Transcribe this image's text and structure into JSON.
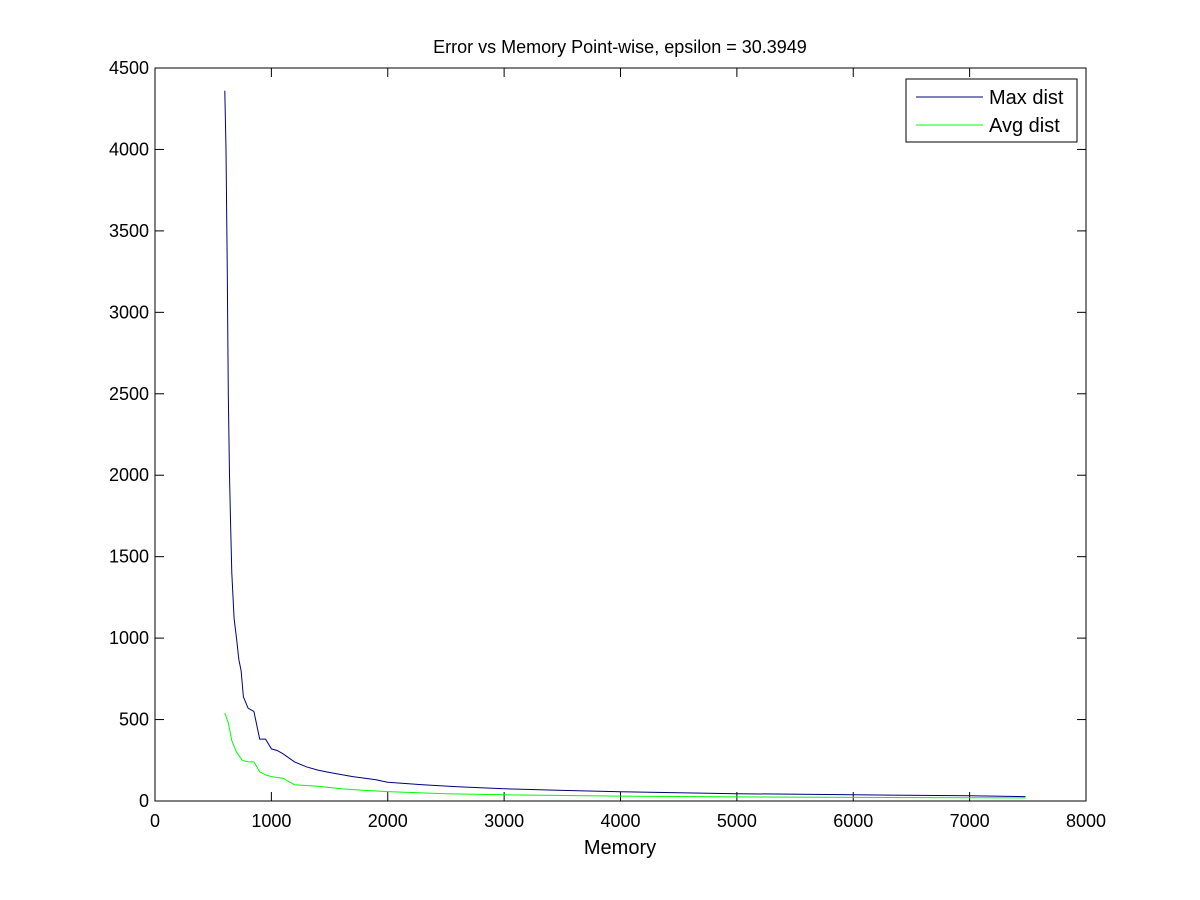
{
  "chart_data": {
    "type": "line",
    "title": "Error vs Memory Point-wise, epsilon = 30.3949",
    "xlabel": "Memory",
    "ylabel": "",
    "xlim": [
      0,
      8000
    ],
    "ylim": [
      0,
      4500
    ],
    "xticks": [
      0,
      1000,
      2000,
      3000,
      4000,
      5000,
      6000,
      7000,
      8000
    ],
    "yticks": [
      0,
      500,
      1000,
      1500,
      2000,
      2500,
      3000,
      3500,
      4000,
      4500
    ],
    "grid": false,
    "legend_position": "top-right",
    "series": [
      {
        "name": "Max dist",
        "color": "#00007f",
        "x": [
          600,
          610,
          620,
          630,
          640,
          650,
          660,
          680,
          700,
          720,
          740,
          760,
          800,
          850,
          900,
          950,
          1000,
          1050,
          1100,
          1200,
          1300,
          1400,
          1500,
          1700,
          1900,
          2000,
          2300,
          2600,
          3000,
          3500,
          4000,
          5000,
          6000,
          7000,
          7480
        ],
        "y": [
          4360,
          4000,
          3300,
          2500,
          2000,
          1700,
          1400,
          1120,
          1000,
          870,
          800,
          640,
          570,
          550,
          380,
          380,
          320,
          310,
          290,
          240,
          210,
          190,
          175,
          150,
          130,
          115,
          100,
          88,
          75,
          65,
          57,
          45,
          38,
          32,
          27
        ]
      },
      {
        "name": "Avg dist",
        "color": "#00ff00",
        "x": [
          600,
          630,
          660,
          700,
          750,
          800,
          850,
          900,
          950,
          1000,
          1100,
          1150,
          1200,
          1400,
          1600,
          1800,
          2000,
          2500,
          3000,
          4000,
          5000,
          6000,
          7000,
          7480
        ],
        "y": [
          540,
          480,
          370,
          300,
          250,
          240,
          240,
          180,
          160,
          150,
          140,
          120,
          100,
          90,
          75,
          65,
          58,
          45,
          38,
          30,
          25,
          22,
          20,
          19
        ]
      }
    ]
  }
}
